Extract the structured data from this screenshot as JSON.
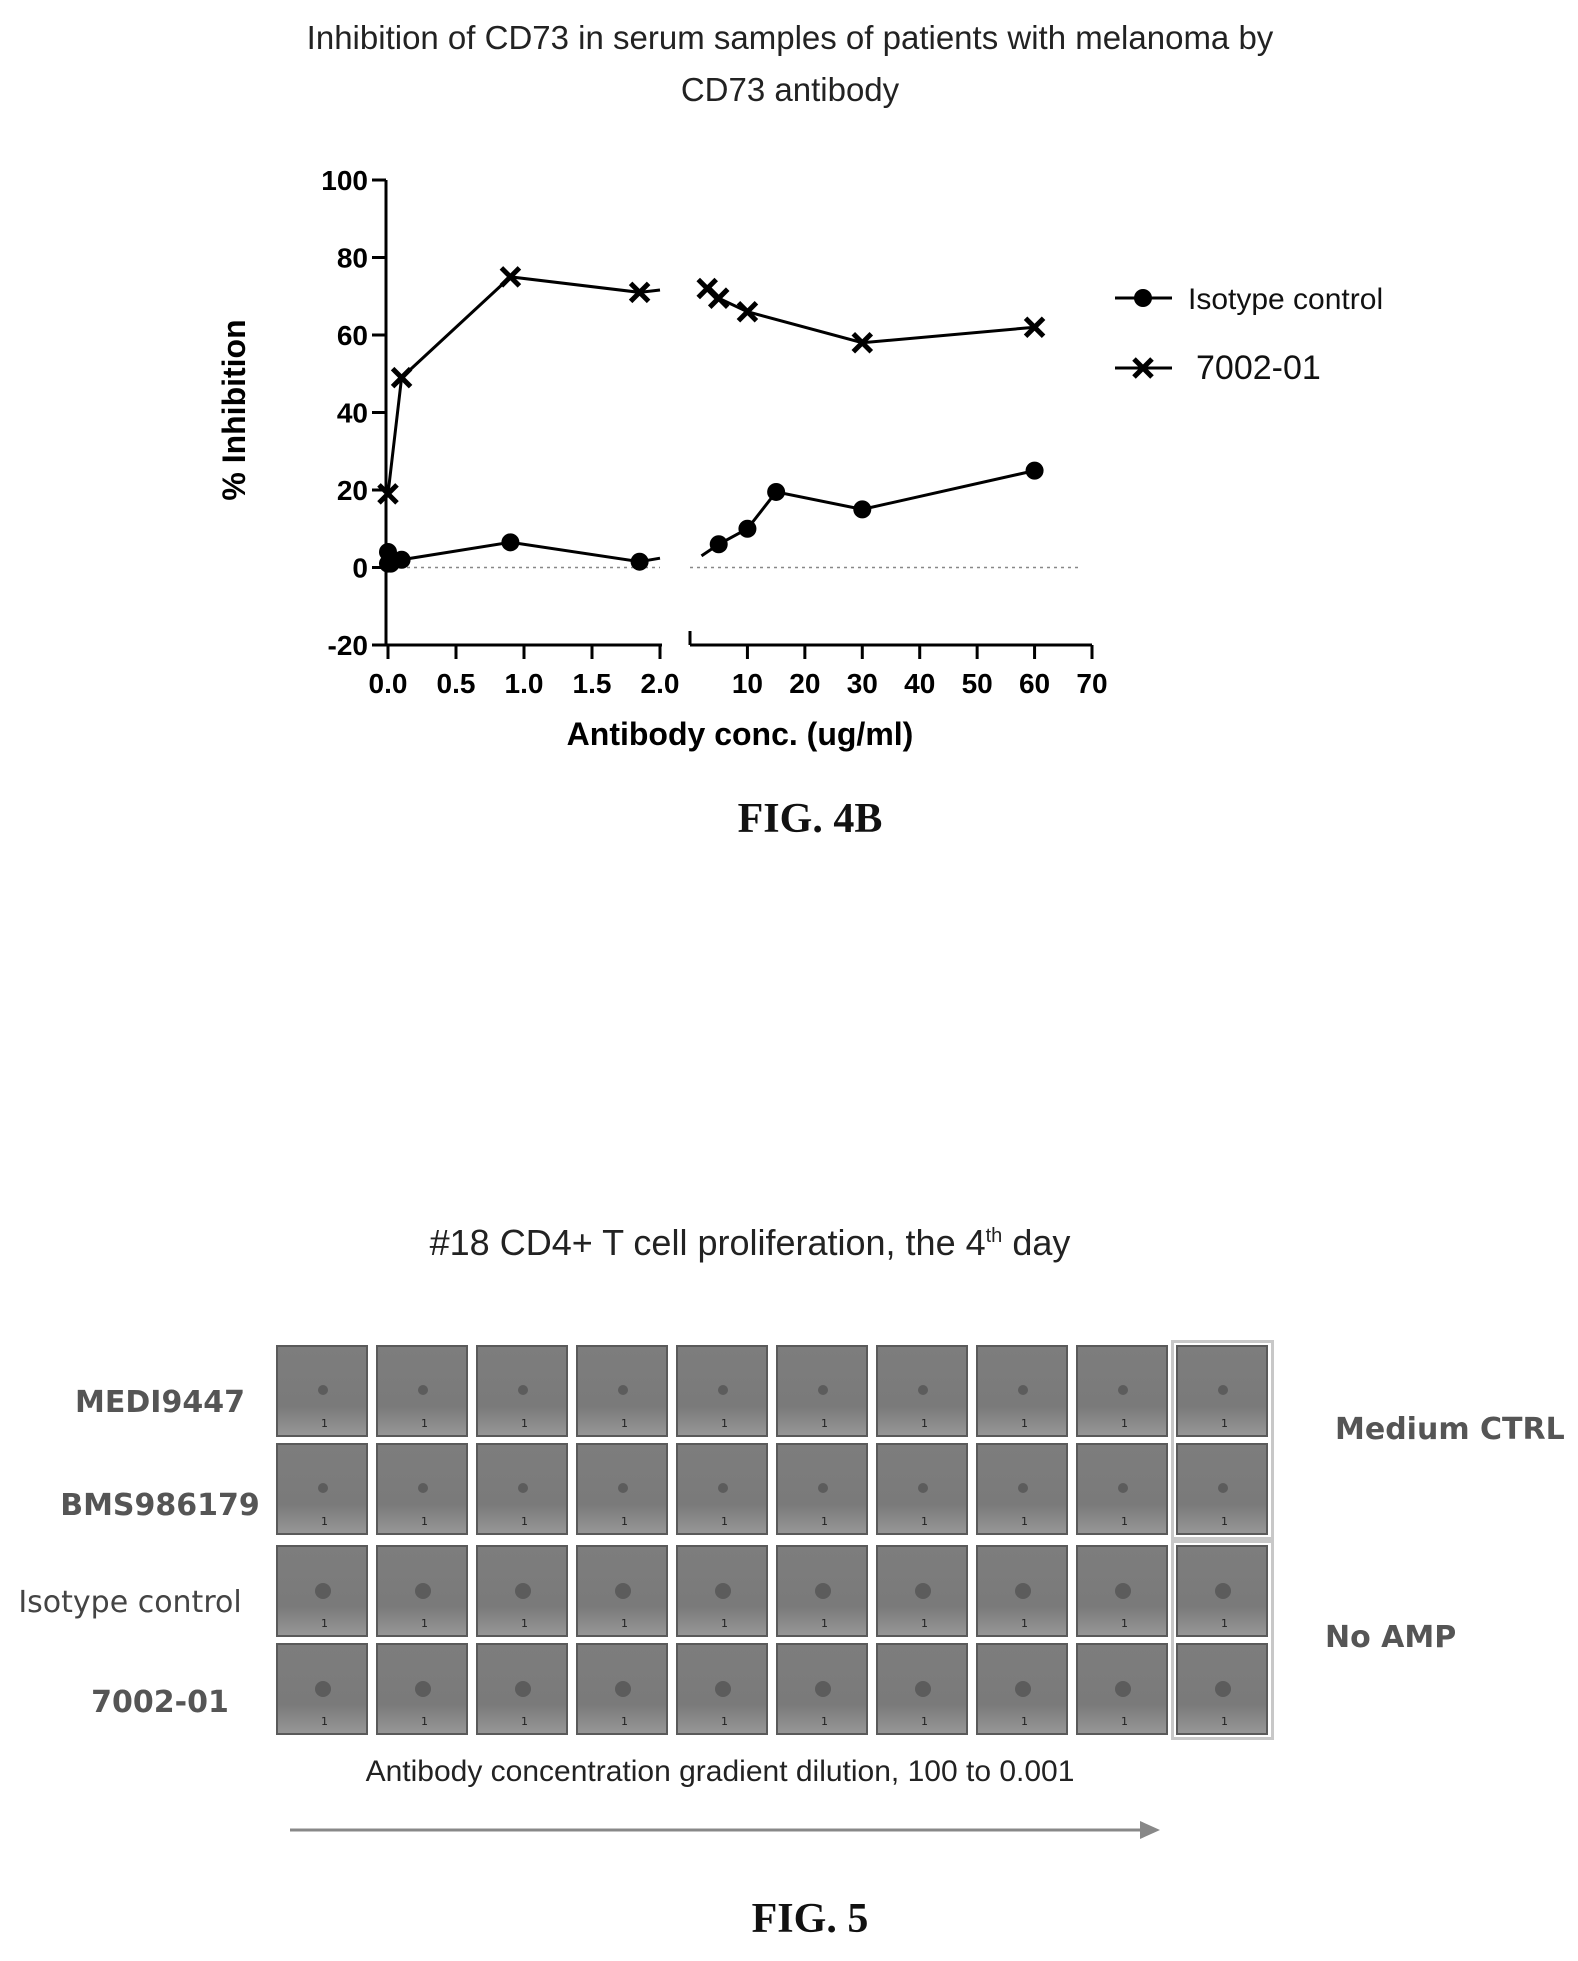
{
  "chart_data": {
    "type": "line",
    "title": "Inhibition of CD73 in serum samples of patients with melanoma by CD73 antibody",
    "xlabel": "Antibody conc. (ug/ml)",
    "ylabel": "% Inhibition",
    "ylim": [
      -20,
      100
    ],
    "yticks": [
      "100",
      "80",
      "60",
      "40",
      "20",
      "0",
      "-20"
    ],
    "x_segments": [
      {
        "range": [
          0,
          2
        ],
        "ticks": [
          "0.0",
          "0.5",
          "1.0",
          "1.5",
          "2.0"
        ]
      },
      {
        "range": [
          0,
          70
        ],
        "ticks": [
          "10",
          "20",
          "30",
          "40",
          "50",
          "60",
          "70"
        ]
      }
    ],
    "legend_position": "right",
    "reference_line": 0,
    "series": [
      {
        "name": "Isotype control",
        "marker": "circle",
        "segment1": {
          "x": [
            0.0,
            0.0,
            0.02,
            0.1,
            0.9,
            1.85
          ],
          "y": [
            4,
            1,
            1,
            2,
            6.5,
            1.5
          ]
        },
        "segment2": {
          "x": [
            2,
            5,
            10,
            15,
            30,
            60
          ],
          "y": [
            3,
            6,
            10,
            19.5,
            15,
            25
          ]
        }
      },
      {
        "name": "7002-01",
        "marker": "x",
        "segment1": {
          "x": [
            0.0,
            0.1,
            0.9,
            1.85
          ],
          "y": [
            19,
            49,
            75,
            71
          ]
        },
        "segment2": {
          "x": [
            3,
            5,
            10,
            30,
            60
          ],
          "y": [
            72,
            69.5,
            66,
            58,
            62
          ]
        }
      }
    ]
  },
  "captions": {
    "fig4b": "FIG. 4B",
    "fig5": "FIG. 5"
  },
  "fig5": {
    "title_main": "#18 CD4+ T cell proliferation, the 4",
    "title_sup": "th",
    "title_end": " day",
    "row_labels": [
      "MEDI9447",
      "BMS986179",
      "Isotype control",
      "7002-01"
    ],
    "side_labels": {
      "top": "Medium CTRL",
      "bottom": "No AMP"
    },
    "well_mark": "1",
    "gradient_label": "Antibody concentration gradient dilution, 100 to 0.001"
  }
}
